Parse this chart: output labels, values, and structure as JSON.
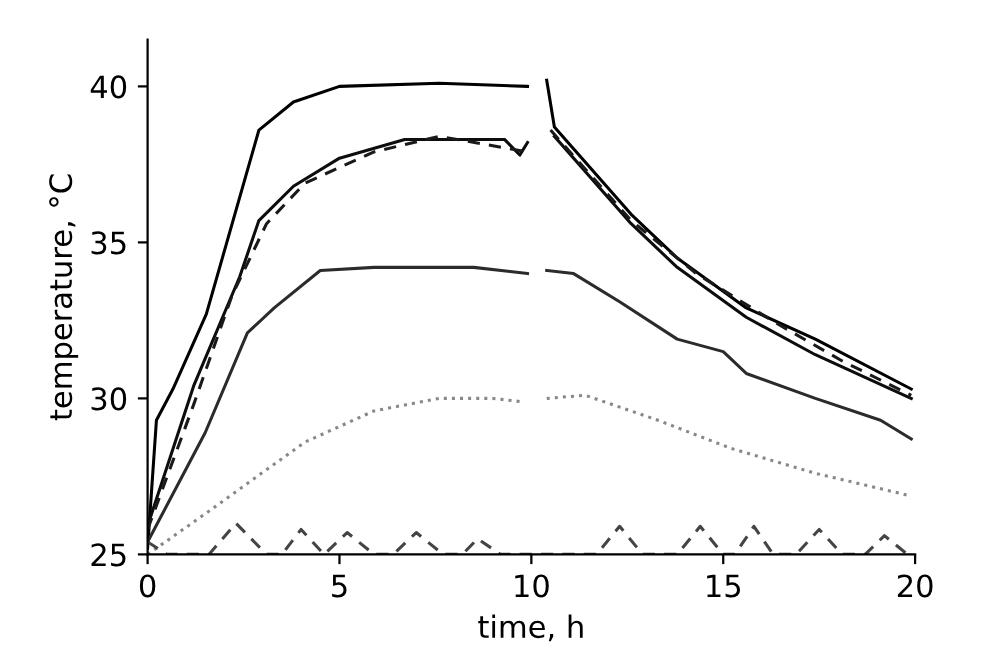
{
  "chart_data": {
    "type": "line",
    "xlabel": "time, h",
    "ylabel": "temperature, °C",
    "xlim": [
      0,
      20
    ],
    "ylim": [
      25,
      41.5
    ],
    "xticks": [
      0,
      5,
      10,
      15,
      20
    ],
    "yticks": [
      25,
      30,
      35,
      40
    ],
    "grid": false,
    "marker": "none",
    "series": [
      {
        "color": "#000000",
        "line_style": "solid",
        "x": [
          0,
          0.23,
          0.66,
          1.53,
          2.9,
          3.8,
          5.0,
          7.6,
          9.9,
          10.1,
          10.4,
          10.6,
          12.6,
          13.8,
          15.6,
          17.4,
          19.9
        ],
        "values": [
          25.2,
          29.3,
          30.3,
          32.7,
          38.6,
          39.5,
          40,
          40.1,
          40,
          null,
          40.2,
          38.7,
          35.9,
          34.5,
          32.9,
          31.9,
          30.3
        ]
      },
      {
        "color": "#0d0d0d",
        "line_style": "solid",
        "x": [
          0.05,
          1.2,
          2.4,
          2.9,
          3.8,
          5,
          6.7,
          9.3,
          9.7,
          9.9,
          10.2,
          10.6,
          12.6,
          13.8,
          15.6,
          17.4,
          19.9
        ],
        "values": [
          26.1,
          30.4,
          33.9,
          35.7,
          36.8,
          37.7,
          38.3,
          38.3,
          37.8,
          38.2,
          null,
          38.4,
          35.6,
          34.2,
          32.6,
          31.4,
          30.0
        ]
      },
      {
        "color": "#1a1a1a",
        "line_style": "dashed",
        "x": [
          0,
          1.2,
          2.2,
          3.1,
          4.1,
          5.9,
          7.6,
          9.9,
          10.2,
          10.5,
          12.6,
          14.3,
          16.4,
          18.1,
          19.9
        ],
        "values": [
          25.8,
          29.8,
          33.3,
          35.6,
          36.9,
          37.9,
          38.4,
          37.9,
          null,
          38.6,
          35.7,
          34.0,
          32.4,
          31.2,
          30.1
        ]
      },
      {
        "color": "#2b2b2b",
        "line_style": "solid",
        "x": [
          0,
          1.5,
          2.6,
          3.3,
          4.5,
          5.9,
          8.5,
          9.9,
          10.2,
          10.4,
          11.1,
          12.3,
          13.8,
          15.0,
          15.6,
          17.4,
          19.1,
          19.9
        ],
        "values": [
          25.4,
          28.9,
          32.1,
          32.9,
          34.1,
          34.2,
          34.2,
          34.0,
          null,
          34.1,
          34.0,
          33.1,
          31.9,
          31.5,
          30.8,
          30.0,
          29.3,
          28.7
        ]
      },
      {
        "color": "#888888",
        "line_style": "dotted",
        "x": [
          0,
          1.5,
          4.1,
          5.9,
          7.6,
          9.0,
          9.7,
          10.1,
          10.4,
          11.4,
          13.3,
          15.2,
          17.4,
          19.8
        ],
        "values": [
          25.0,
          26.3,
          28.6,
          29.6,
          30.0,
          30.0,
          29.9,
          null,
          30.0,
          30.1,
          29.3,
          28.4,
          27.6,
          26.9
        ]
      },
      {
        "color": "#444444",
        "line_style": "dashed",
        "x": [
          0,
          0.5,
          1.6,
          2.3,
          3.1,
          3.5,
          4.0,
          4.6,
          5.2,
          5.9,
          6.4,
          7.0,
          7.7,
          8.2,
          8.6,
          9.2,
          10.5,
          11.7,
          12.3,
          12.9,
          13.8,
          14.4,
          15.0,
          15.3,
          15.8,
          16.3,
          16.9,
          17.5,
          18.1,
          18.7,
          19.2,
          19.8
        ],
        "values": [
          25.4,
          25.0,
          25.0,
          26.0,
          25.0,
          25.0,
          25.8,
          25.0,
          25.7,
          25.0,
          25.0,
          25.7,
          25.0,
          25.0,
          25.5,
          25.0,
          25.0,
          25.0,
          25.9,
          25.0,
          25.0,
          25.9,
          25.0,
          25.0,
          25.9,
          25.0,
          25.0,
          25.8,
          25.0,
          25.0,
          25.6,
          25.0
        ]
      }
    ]
  }
}
